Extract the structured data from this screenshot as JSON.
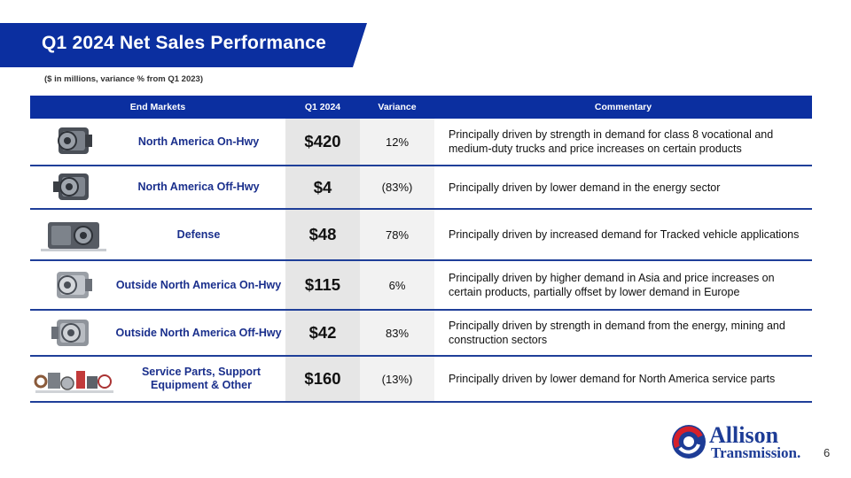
{
  "title": "Q1 2024 Net Sales Performance",
  "subtitle": "($ in millions, variance % from Q1 2023)",
  "table": {
    "headers": {
      "market": "End Markets",
      "q": "Q1 2024",
      "variance": "Variance",
      "commentary": "Commentary"
    },
    "rows": [
      {
        "market": "North America On-Hwy",
        "q": "$420",
        "variance": "12%",
        "commentary": "Principally driven by strength in demand for class 8 vocational and medium-duty trucks and price increases on certain products"
      },
      {
        "market": "North America Off-Hwy",
        "q": "$4",
        "variance": "(83%)",
        "commentary": "Principally driven by lower demand in the energy sector"
      },
      {
        "market": "Defense",
        "q": "$48",
        "variance": "78%",
        "commentary": "Principally driven by increased demand for Tracked vehicle applications"
      },
      {
        "market": "Outside North America On-Hwy",
        "q": "$115",
        "variance": "6%",
        "commentary": "Principally driven by higher demand in Asia and price increases on certain products, partially offset by lower demand in Europe"
      },
      {
        "market": "Outside North America Off-Hwy",
        "q": "$42",
        "variance": "83%",
        "commentary": "Principally driven by strength in demand from the energy, mining and construction sectors"
      },
      {
        "market": "Service Parts, Support Equipment & Other",
        "q": "$160",
        "variance": "(13%)",
        "commentary": "Principally driven by lower demand for North America service parts"
      }
    ]
  },
  "logo": {
    "name": "Allison",
    "sub": "Transmission."
  },
  "page_number": "6",
  "colors": {
    "brand_blue": "#0b2fa0",
    "accent_red": "#d6202a"
  }
}
